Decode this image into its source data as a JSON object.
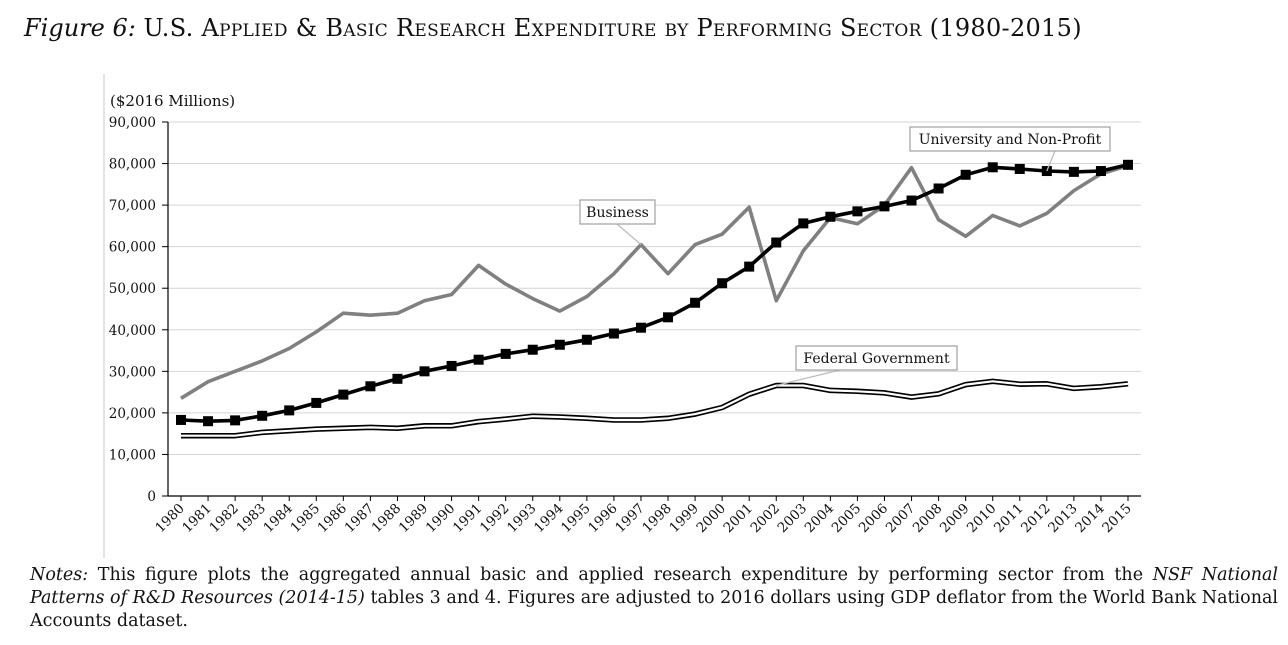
{
  "figure": {
    "number": "Figure 6:",
    "title": "U.S. Applied & Basic Research Expenditure by Performing Sector (1980-2015)"
  },
  "notes": {
    "label": "Notes:",
    "text_1": " This figure plots the aggregated annual basic and applied research expenditure by performing sector from the ",
    "source": "NSF National Patterns of R&D Resources (2014-15)",
    "text_2": " tables 3 and 4. Figures are adjusted to 2016 dollars using GDP deflator from the World Bank National Accounts dataset."
  },
  "chart_data": {
    "type": "line",
    "unit_label": "($2016 Millions)",
    "xlabel": "",
    "ylabel": "",
    "ylim": [
      0,
      90000
    ],
    "y_ticks": [
      "0",
      "10,000",
      "20,000",
      "30,000",
      "40,000",
      "50,000",
      "60,000",
      "70,000",
      "80,000",
      "90,000"
    ],
    "grid": "horizontal",
    "categories": [
      "1980",
      "1981",
      "1982",
      "1983",
      "1984",
      "1985",
      "1986",
      "1987",
      "1988",
      "1989",
      "1990",
      "1991",
      "1992",
      "1993",
      "1994",
      "1995",
      "1996",
      "1997",
      "1998",
      "1999",
      "2000",
      "2001",
      "2002",
      "2003",
      "2004",
      "2005",
      "2006",
      "2007",
      "2008",
      "2009",
      "2010",
      "2011",
      "2012",
      "2013",
      "2014",
      "2015"
    ],
    "series": [
      {
        "name": "Business",
        "color": "#808080",
        "style": "thick gray line",
        "values": [
          23500,
          27500,
          30000,
          32500,
          35500,
          39500,
          44000,
          43500,
          44000,
          47000,
          48500,
          55500,
          51000,
          47500,
          44500,
          48000,
          53500,
          60500,
          53500,
          60500,
          63000,
          69500,
          47000,
          59000,
          67000,
          65500,
          70000,
          79000,
          66500,
          62500,
          67500,
          65000,
          68000,
          73500,
          77500,
          79500
        ]
      },
      {
        "name": "University and Non-Profit",
        "color": "#000000",
        "style": "thick black line with square markers",
        "values": [
          18300,
          18000,
          18200,
          19300,
          20600,
          22400,
          24400,
          26400,
          28200,
          30000,
          31300,
          32800,
          34200,
          35200,
          36400,
          37600,
          39100,
          40500,
          43000,
          46500,
          51200,
          55200,
          61000,
          65600,
          67200,
          68500,
          69700,
          71100,
          74000,
          77300,
          79100,
          78700,
          78200,
          78000,
          78200,
          79700
        ]
      },
      {
        "name": "Federal Government",
        "color": "#000000",
        "style": "double thin line",
        "values": [
          14500,
          14500,
          14500,
          15300,
          15700,
          16100,
          16300,
          16500,
          16300,
          16900,
          16900,
          17900,
          18500,
          19200,
          19000,
          18700,
          18300,
          18300,
          18700,
          19700,
          21300,
          24500,
          26600,
          26600,
          25400,
          25200,
          24800,
          23800,
          24600,
          26800,
          27600,
          26900,
          27000,
          25900,
          26300,
          27000
        ]
      }
    ],
    "callouts": [
      "University and Non-Profit",
      "Business",
      "Federal Government"
    ]
  }
}
